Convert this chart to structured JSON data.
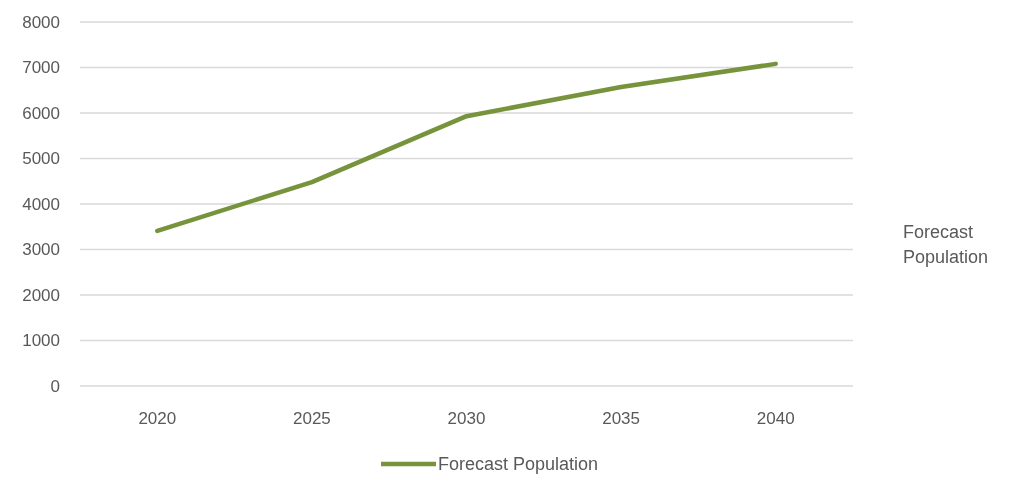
{
  "chart_data": {
    "type": "line",
    "categories": [
      "2020",
      "2025",
      "2030",
      "2035",
      "2040"
    ],
    "series": [
      {
        "name": "Forecast Population",
        "color": "#77933c",
        "values": [
          3410,
          4480,
          5930,
          6570,
          7080
        ]
      }
    ],
    "ylabel": "Forecast Population",
    "ylim": [
      0,
      8000
    ],
    "yticks": [
      0,
      1000,
      2000,
      3000,
      4000,
      5000,
      6000,
      7000,
      8000
    ],
    "grid": "y",
    "legend": "bottom",
    "marker": "none",
    "line_style": "solid"
  }
}
